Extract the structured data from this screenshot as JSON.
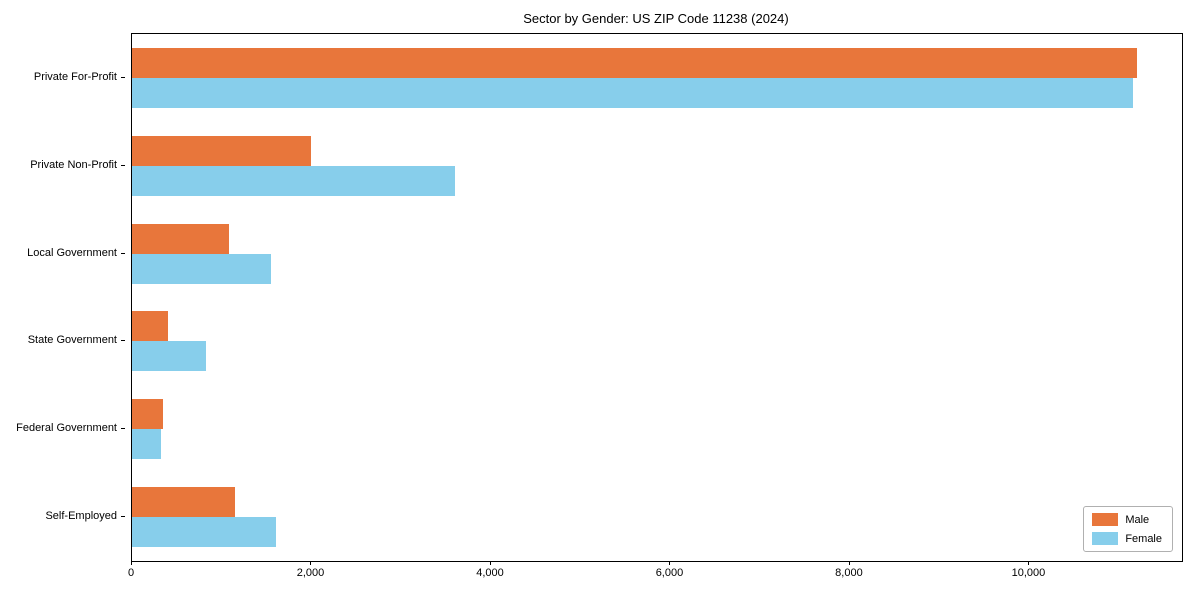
{
  "title": "Sector by Gender: US ZIP Code 11238 (2024)",
  "chart_data": {
    "type": "bar",
    "orientation": "horizontal",
    "title": "Sector by Gender: US ZIP Code 11238 (2024)",
    "categories": [
      "Private For-Profit",
      "Private Non-Profit",
      "Local Government",
      "State Government",
      "Federal Government",
      "Self-Employed"
    ],
    "series": [
      {
        "name": "Male",
        "color": "#e8763b",
        "values": [
          11200,
          2000,
          1080,
          400,
          350,
          1150
        ]
      },
      {
        "name": "Female",
        "color": "#87ceeb",
        "values": [
          11150,
          3600,
          1550,
          820,
          320,
          1600
        ]
      }
    ],
    "xlabel": "",
    "ylabel": "",
    "xlim": [
      0,
      11700
    ],
    "xticks": [
      0,
      2000,
      4000,
      6000,
      8000,
      10000
    ],
    "xtick_labels": [
      "0",
      "2,000",
      "4,000",
      "6,000",
      "8,000",
      "10,000"
    ],
    "grid": false,
    "legend_position": "lower right"
  }
}
